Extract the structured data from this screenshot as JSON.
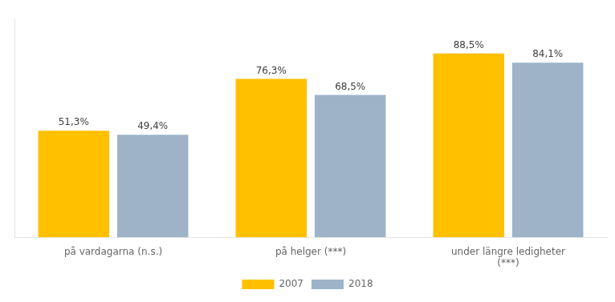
{
  "chart_data": {
    "type": "bar",
    "categories": [
      "på vardagarna (n.s.)",
      "på helger (***)",
      "under längre ledigheter\n(***)"
    ],
    "series": [
      {
        "name": "2007",
        "color": "#FFC000",
        "values": [
          51.3,
          76.3,
          88.5
        ],
        "value_labels": [
          "51,3%",
          "76,3%",
          "88,5%"
        ]
      },
      {
        "name": "2018",
        "color": "#9EB3C8",
        "values": [
          49.4,
          68.5,
          84.1
        ],
        "value_labels": [
          "49,4%",
          "68,5%",
          "84,1%"
        ]
      }
    ],
    "ylim": [
      0,
      105
    ],
    "grid": false,
    "legend": "bottom",
    "data_labels": true,
    "tick_labels": "x"
  }
}
